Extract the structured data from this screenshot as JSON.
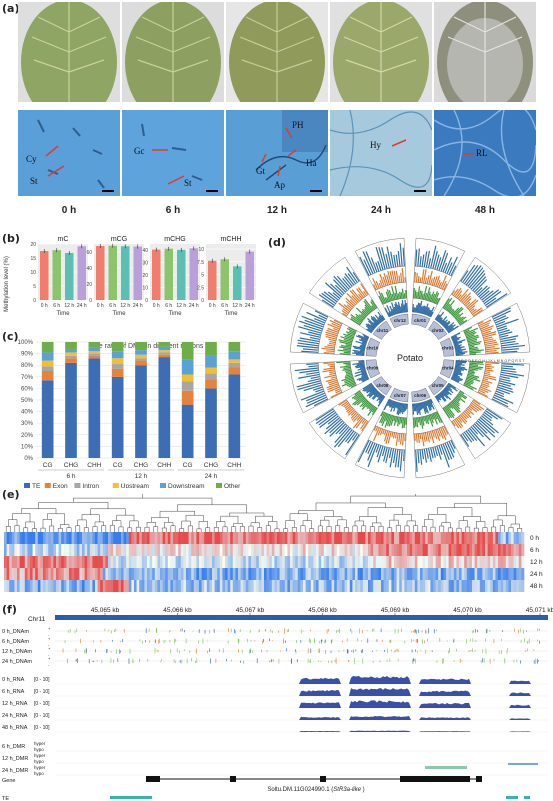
{
  "panel_labels": {
    "a": "(a)",
    "b": "(b)",
    "c": "(c)",
    "d": "(d)",
    "e": "(e)",
    "f": "(f)"
  },
  "panel_a": {
    "timepoints": [
      "0 h",
      "6 h",
      "12 h",
      "24 h",
      "48 h"
    ],
    "annotations": {
      "cy": "Cy",
      "st1": "St",
      "gc": "Gc",
      "st2": "St",
      "ph": "PH",
      "ha": "Ha",
      "gt": "Gt",
      "ap": "Ap",
      "hy": "Hy",
      "rl": "RL"
    }
  },
  "chart_data": [
    {
      "type": "bar",
      "title": "mC",
      "xlabel": "Time",
      "ylabel": "Methylation level (%)",
      "categories": [
        "0 h",
        "6 h",
        "12 h",
        "24 h"
      ],
      "values": [
        17.5,
        17.8,
        16.8,
        19.2
      ],
      "ylim": [
        0,
        20
      ],
      "yticks": [
        0,
        5,
        10,
        15,
        20
      ]
    },
    {
      "type": "bar",
      "title": "mCG",
      "xlabel": "Time",
      "categories": [
        "0 h",
        "6 h",
        "12 h",
        "24 h"
      ],
      "values": [
        67.5,
        67.8,
        67.2,
        66.8
      ],
      "ylim": [
        0,
        70
      ],
      "yticks": [
        0,
        20,
        40,
        60
      ]
    },
    {
      "type": "bar",
      "title": "mCHG",
      "xlabel": "Time",
      "categories": [
        "0 h",
        "6 h",
        "12 h",
        "24 h"
      ],
      "values": [
        40.5,
        41.2,
        40.3,
        41.5
      ],
      "ylim": [
        0,
        45
      ],
      "yticks": [
        0,
        10,
        20,
        30,
        40
      ]
    },
    {
      "type": "bar",
      "title": "mCHH",
      "xlabel": "Time",
      "categories": [
        "0 h",
        "6 h",
        "12 h",
        "24 h"
      ],
      "values": [
        7.7,
        8.0,
        6.6,
        9.5
      ],
      "ylim": [
        0,
        11
      ],
      "yticks": [
        0,
        2.5,
        5.0,
        7.5,
        10
      ]
    },
    {
      "type": "bar",
      "title": "The ratio of DMC in different regions",
      "categories": [
        "CG",
        "CHG",
        "CHH",
        "CG",
        "CHG",
        "CHH",
        "CG",
        "CHG",
        "CHH"
      ],
      "groups": [
        "6 h",
        "12 h",
        "24 h"
      ],
      "yticks": [
        "0%",
        "10%",
        "20%",
        "30%",
        "40%",
        "50%",
        "60%",
        "70%",
        "80%",
        "90%",
        "100%"
      ],
      "series": [
        {
          "name": "TE",
          "values": [
            67,
            82,
            86,
            70,
            80,
            87,
            46,
            60,
            72
          ]
        },
        {
          "name": "Exon",
          "values": [
            8,
            4,
            2,
            7,
            4,
            2,
            12,
            8,
            6
          ]
        },
        {
          "name": "Intron",
          "values": [
            4,
            2,
            2,
            4,
            2,
            2,
            8,
            5,
            4
          ]
        },
        {
          "name": "Upstream",
          "values": [
            5,
            3,
            2,
            5,
            3,
            2,
            6,
            5,
            3
          ]
        },
        {
          "name": "Downstream",
          "values": [
            7,
            3,
            3,
            6,
            4,
            3,
            13,
            10,
            7
          ]
        },
        {
          "name": "Other",
          "values": [
            9,
            6,
            5,
            8,
            7,
            4,
            15,
            12,
            8
          ]
        }
      ]
    }
  ],
  "panel_d": {
    "center": "Potato",
    "chromosomes": [
      "chr01",
      "chr02",
      "chr03",
      "chr04",
      "chr05",
      "chr06",
      "chr07",
      "chr08",
      "chr09",
      "chr10",
      "chr11",
      "chr12"
    ],
    "track_letters": "A B C D E F G H I J K L M N O P Q R S T"
  },
  "panel_e": {
    "rows": [
      "0 h",
      "6 h",
      "12 h",
      "24 h",
      "48 h"
    ]
  },
  "panel_f": {
    "chrom": "Chr11",
    "kb_ticks": [
      "45,065 kb",
      "45,066 kb",
      "45,067 kb",
      "45,068 kb",
      "45,069 kb",
      "45,070 kb",
      "45,071 kb"
    ],
    "dnam_tracks": [
      "0 h_DNAm",
      "6 h_DNAm",
      "12 h_DNAm",
      "24 h_DNAm"
    ],
    "rna_tracks": [
      "0 h_RNA",
      "6 h_RNA",
      "12 h_RNA",
      "24 h_RNA",
      "48 h_RNA"
    ],
    "rna_range": "[0 - 10]",
    "dmr_tracks": [
      "6 h_DMR",
      "12 h_DMR",
      "24 h_DMR"
    ],
    "dmr_sub": [
      "hyper",
      "hypo"
    ],
    "gene_label": "Gene",
    "gene_name": "Soltu.DM.11G024990.1 (",
    "gene_alias": "StR3a-like",
    "gene_close": " )",
    "te_label": "TE",
    "plus": "+",
    "minus": "-"
  },
  "colors": {
    "TE": "#3d6eb5",
    "Exon": "#e8823a",
    "Intron": "#a6a6a6",
    "Upstream": "#f2c02f",
    "Downstream": "#5aa2d6",
    "Other": "#6fad47",
    "b_bars": [
      "#f07d6e",
      "#8cc36b",
      "#5bbfb3",
      "#b9a0d8"
    ]
  }
}
